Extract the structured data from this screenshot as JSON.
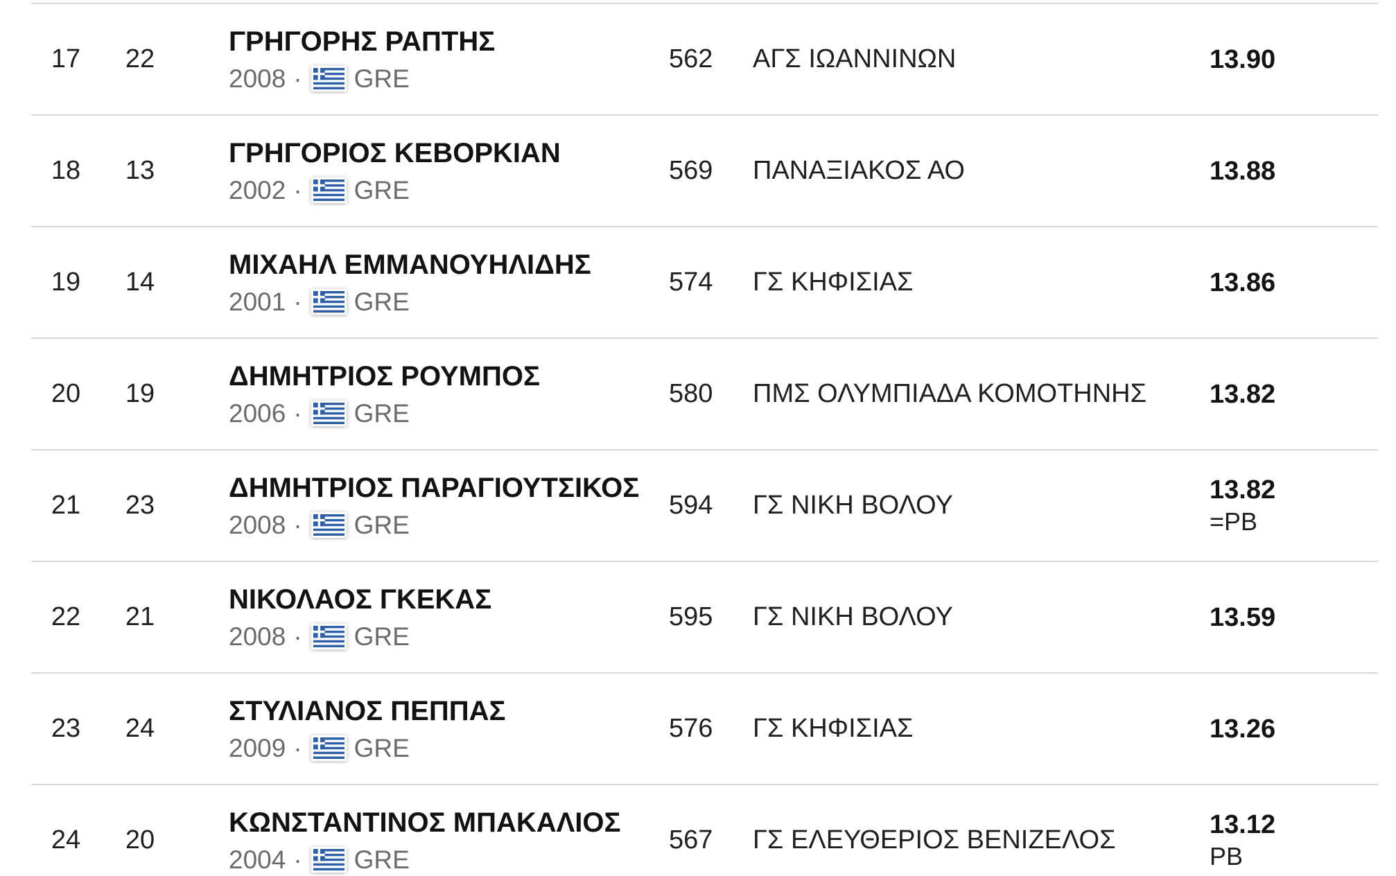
{
  "table": {
    "description": "athletics-results-list",
    "dot_separator": "·",
    "country_flag": "greece-flag-icon",
    "rows": [
      {
        "rank": "17",
        "bib": "22",
        "name": "ΓΡΗΓΟΡΗΣ ΡΑΠΤΗΣ",
        "year": "2008",
        "country": "GRE",
        "id": "562",
        "club": "ΑΓΣ ΙΩΑΝΝΙΝΩΝ",
        "result": "13.90",
        "note": ""
      },
      {
        "rank": "18",
        "bib": "13",
        "name": "ΓΡΗΓΟΡΙΟΣ ΚΕΒΟΡΚΙΑΝ",
        "year": "2002",
        "country": "GRE",
        "id": "569",
        "club": "ΠΑΝΑΞΙΑΚΟΣ ΑΟ",
        "result": "13.88",
        "note": ""
      },
      {
        "rank": "19",
        "bib": "14",
        "name": "ΜΙΧΑΗΛ ΕΜΜΑΝΟΥΗΛΙΔΗΣ",
        "year": "2001",
        "country": "GRE",
        "id": "574",
        "club": "ΓΣ ΚΗΦΙΣΙΑΣ",
        "result": "13.86",
        "note": ""
      },
      {
        "rank": "20",
        "bib": "19",
        "name": "ΔΗΜΗΤΡΙΟΣ ΡΟΥΜΠΟΣ",
        "year": "2006",
        "country": "GRE",
        "id": "580",
        "club": "ΠΜΣ ΟΛΥΜΠΙΑΔΑ ΚΟΜΟΤΗΝΗΣ",
        "result": "13.82",
        "note": ""
      },
      {
        "rank": "21",
        "bib": "23",
        "name": "ΔΗΜΗΤΡΙΟΣ ΠΑΡΑΓΙΟΥΤΣΙΚΟΣ",
        "year": "2008",
        "country": "GRE",
        "id": "594",
        "club": "ΓΣ ΝΙΚΗ ΒΟΛΟΥ",
        "result": "13.82",
        "note": "=PB"
      },
      {
        "rank": "22",
        "bib": "21",
        "name": "ΝΙΚΟΛΑΟΣ ΓΚΕΚΑΣ",
        "year": "2008",
        "country": "GRE",
        "id": "595",
        "club": "ΓΣ ΝΙΚΗ ΒΟΛΟΥ",
        "result": "13.59",
        "note": ""
      },
      {
        "rank": "23",
        "bib": "24",
        "name": "ΣΤΥΛΙΑΝΟΣ ΠΕΠΠΑΣ",
        "year": "2009",
        "country": "GRE",
        "id": "576",
        "club": "ΓΣ ΚΗΦΙΣΙΑΣ",
        "result": "13.26",
        "note": ""
      },
      {
        "rank": "24",
        "bib": "20",
        "name": "ΚΩΝΣΤΑΝΤΙΝΟΣ ΜΠΑΚΑΛΙΟΣ",
        "year": "2004",
        "country": "GRE",
        "id": "567",
        "club": "ΓΣ ΕΛΕΥΘΕΡΙΟΣ ΒΕΝΙΖΕΛΟΣ",
        "result": "13.12",
        "note": "PB"
      }
    ]
  },
  "colors": {
    "flag_blue": "#2f5fa7",
    "divider": "#d8d8d8",
    "text_primary": "#1f1f1f",
    "text_secondary": "#6b6b6b"
  }
}
